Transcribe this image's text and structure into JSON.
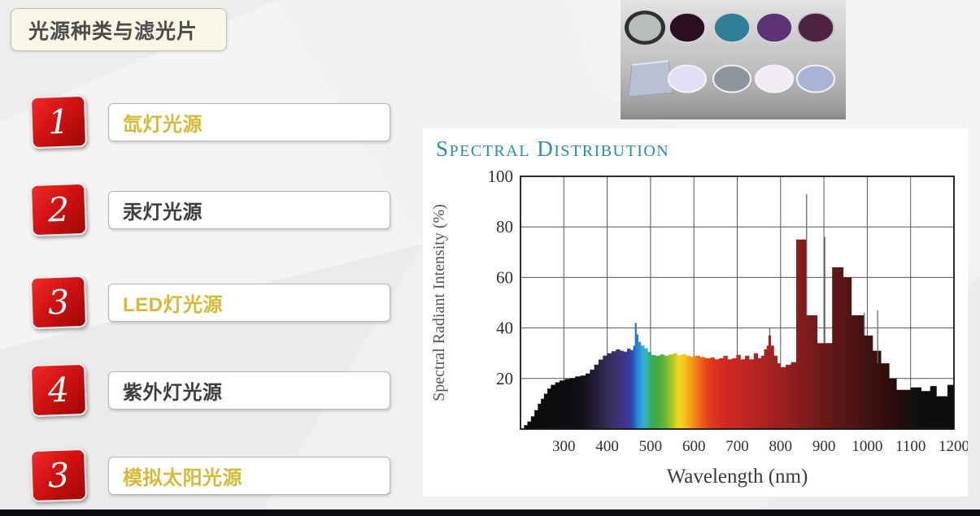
{
  "slide": {
    "title": "光源种类与滤光片",
    "items": [
      {
        "number": "1",
        "label": "氙灯光源",
        "style": "gold"
      },
      {
        "number": "2",
        "label": "汞灯光源",
        "style": "dark"
      },
      {
        "number": "3",
        "label": "LED灯光源",
        "style": "gold"
      },
      {
        "number": "4",
        "label": "紫外灯光源",
        "style": "dark"
      },
      {
        "number": "3",
        "label": "模拟太阳光源",
        "style": "gold"
      }
    ],
    "accent_red": "#d21212",
    "gold_text_color": "#d6ba35",
    "dark_text_color": "#3e3e3e",
    "bottom_bar_color": "#0b0b12"
  },
  "filters_photo": {
    "top_row_colors": [
      "#b9bdb9",
      "#2a0f1e",
      "#2f8096",
      "#5c3473",
      "#4d2340"
    ],
    "top_row_rim_colors": [
      "#303030",
      "#d8d3e2",
      "#d8d3e2",
      "#d8d3e2",
      "#c6b4c8"
    ],
    "bottom_row_colors": [
      "#e2dff5",
      "#8e969d",
      "#f2ecf4",
      "#a9b3d6"
    ],
    "plate_color": "#b7c1d3"
  },
  "chart_data": {
    "type": "area",
    "title": "Spectral Distribution",
    "title_color": "#2e8da4",
    "xlabel": "Wavelength (nm)",
    "ylabel": "Spectral Radiant Intensity (%)",
    "xlim": [
      200,
      1200
    ],
    "ylim": [
      0,
      100
    ],
    "x_ticks": [
      300,
      400,
      500,
      600,
      700,
      800,
      900,
      1000,
      1100,
      1200
    ],
    "y_ticks": [
      20,
      40,
      60,
      80,
      100
    ],
    "grid": true,
    "profile": [
      [
        200,
        0
      ],
      [
        208,
        1.5
      ],
      [
        216,
        3
      ],
      [
        224,
        5
      ],
      [
        232,
        7.5
      ],
      [
        240,
        10
      ],
      [
        247,
        12
      ],
      [
        254,
        14
      ],
      [
        262,
        16
      ],
      [
        270,
        17.5
      ],
      [
        280,
        18.5
      ],
      [
        290,
        19.2
      ],
      [
        302,
        19.8
      ],
      [
        314,
        20.2
      ],
      [
        326,
        20.8
      ],
      [
        338,
        21.2
      ],
      [
        350,
        22
      ],
      [
        360,
        23.5
      ],
      [
        370,
        25.5
      ],
      [
        380,
        27.5
      ],
      [
        390,
        29
      ],
      [
        400,
        30
      ],
      [
        410,
        30.8
      ],
      [
        420,
        31.5
      ],
      [
        430,
        31
      ],
      [
        438,
        30.6
      ],
      [
        446,
        31.8
      ],
      [
        454,
        31.2
      ],
      [
        460,
        33
      ],
      [
        464,
        42
      ],
      [
        468,
        37.5
      ],
      [
        472,
        34.5
      ],
      [
        478,
        33
      ],
      [
        486,
        32
      ],
      [
        494,
        30.5
      ],
      [
        502,
        29.3
      ],
      [
        512,
        29
      ],
      [
        522,
        29.5
      ],
      [
        532,
        29
      ],
      [
        542,
        29.5
      ],
      [
        552,
        30
      ],
      [
        562,
        29.2
      ],
      [
        572,
        29.6
      ],
      [
        582,
        29
      ],
      [
        592,
        28.6
      ],
      [
        602,
        29
      ],
      [
        614,
        28.5
      ],
      [
        626,
        28
      ],
      [
        638,
        28.4
      ],
      [
        648,
        27.6
      ],
      [
        658,
        28
      ],
      [
        668,
        29
      ],
      [
        678,
        27.6
      ],
      [
        688,
        28
      ],
      [
        698,
        29.4
      ],
      [
        708,
        27.6
      ],
      [
        718,
        29
      ],
      [
        728,
        27.6
      ],
      [
        738,
        30
      ],
      [
        748,
        28
      ],
      [
        755,
        29
      ],
      [
        762,
        31.5
      ],
      [
        768,
        33
      ],
      [
        772,
        37
      ],
      [
        778,
        33
      ],
      [
        785,
        29
      ],
      [
        793,
        26
      ],
      [
        800,
        24.5
      ],
      [
        812,
        25.5
      ],
      [
        824,
        26.5
      ],
      [
        836,
        75
      ],
      [
        860,
        45
      ],
      [
        885,
        34
      ],
      [
        919,
        64
      ],
      [
        945,
        60
      ],
      [
        964,
        45
      ],
      [
        994,
        37
      ],
      [
        1013,
        31
      ],
      [
        1032,
        26
      ],
      [
        1051,
        20
      ],
      [
        1068,
        15.5
      ],
      [
        1100,
        16.5
      ],
      [
        1125,
        15
      ],
      [
        1145,
        17
      ],
      [
        1160,
        13
      ],
      [
        1185,
        17.5
      ],
      [
        1200,
        17.5
      ]
    ],
    "spikes": [
      [
        775,
        40,
        37
      ],
      [
        860,
        93,
        45
      ],
      [
        902,
        76,
        34
      ],
      [
        993,
        46,
        37
      ],
      [
        1024,
        47,
        26
      ]
    ],
    "spectrum_stops": [
      [
        200,
        "#0b0b0b"
      ],
      [
        335,
        "#0f0e13"
      ],
      [
        355,
        "#191523"
      ],
      [
        375,
        "#271f3a"
      ],
      [
        395,
        "#322a50"
      ],
      [
        412,
        "#3a3166"
      ],
      [
        430,
        "#3e337c"
      ],
      [
        446,
        "#3a3694"
      ],
      [
        456,
        "#3046ab"
      ],
      [
        463,
        "#2563c4"
      ],
      [
        468,
        "#1f7fd4"
      ],
      [
        476,
        "#2b9bd8"
      ],
      [
        484,
        "#35aed2"
      ],
      [
        492,
        "#38b2a2"
      ],
      [
        500,
        "#38aa62"
      ],
      [
        510,
        "#3fac48"
      ],
      [
        522,
        "#4daf3e"
      ],
      [
        534,
        "#68b736"
      ],
      [
        546,
        "#97c42c"
      ],
      [
        556,
        "#c6cf24"
      ],
      [
        564,
        "#ecd91f"
      ],
      [
        574,
        "#f6cb1c"
      ],
      [
        584,
        "#f7b319"
      ],
      [
        594,
        "#f79a17"
      ],
      [
        604,
        "#f58017"
      ],
      [
        616,
        "#f06118"
      ],
      [
        628,
        "#e84a1b"
      ],
      [
        642,
        "#e0371e"
      ],
      [
        658,
        "#d82c20"
      ],
      [
        680,
        "#d02721"
      ],
      [
        710,
        "#c42521"
      ],
      [
        745,
        "#b52321"
      ],
      [
        780,
        "#a42120"
      ],
      [
        815,
        "#941f1f"
      ],
      [
        845,
        "#851d1d"
      ],
      [
        875,
        "#761b1b"
      ],
      [
        905,
        "#691818"
      ],
      [
        940,
        "#5a1616"
      ],
      [
        975,
        "#4c1313"
      ],
      [
        1010,
        "#3e1111"
      ],
      [
        1045,
        "#300e0e"
      ],
      [
        1075,
        "#230b0b"
      ],
      [
        1100,
        "#141010"
      ],
      [
        1130,
        "#0d0d0d"
      ],
      [
        1200,
        "#0d0d0d"
      ]
    ]
  }
}
